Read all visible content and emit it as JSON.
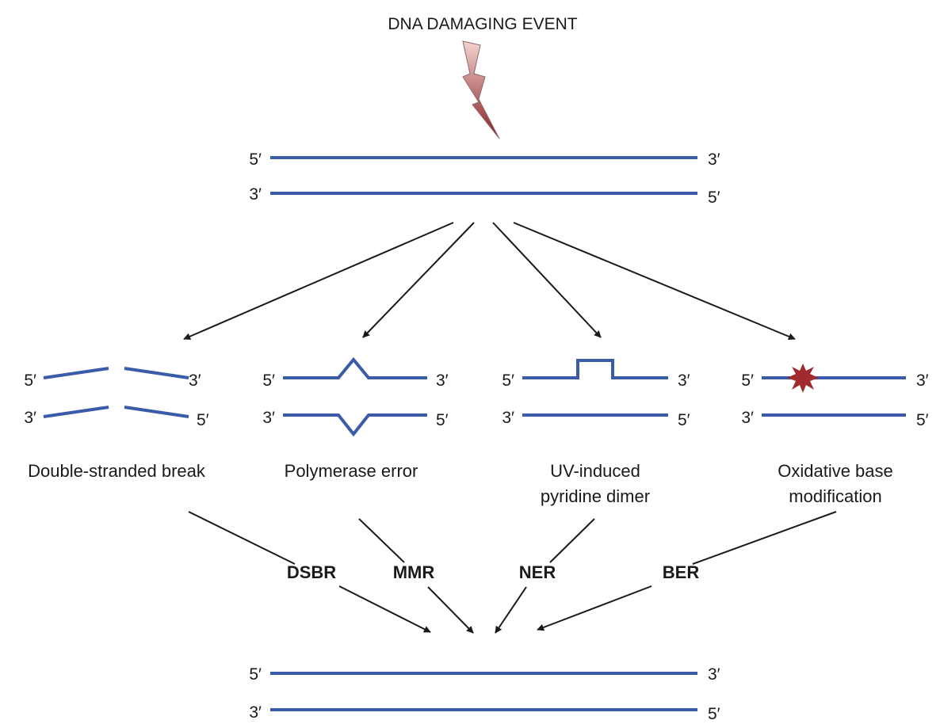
{
  "title": "DNA DAMAGING EVENT",
  "colors": {
    "strand": "#3a5ba8",
    "bolt_light": "#f3d4d0",
    "bolt_dark": "#8b1e24",
    "lesion": "#a02a2e",
    "arrow": "#1a1a1a"
  },
  "ends": {
    "five": "5′",
    "three": "3′"
  },
  "damage_types": [
    {
      "caption": [
        "Double-stranded break"
      ],
      "repair": "DSBR"
    },
    {
      "caption": [
        "Polymerase error"
      ],
      "repair": "MMR"
    },
    {
      "caption": [
        "UV-induced",
        "pyridine dimer"
      ],
      "repair": "NER"
    },
    {
      "caption": [
        "Oxidative base",
        "modification"
      ],
      "repair": "BER"
    }
  ]
}
